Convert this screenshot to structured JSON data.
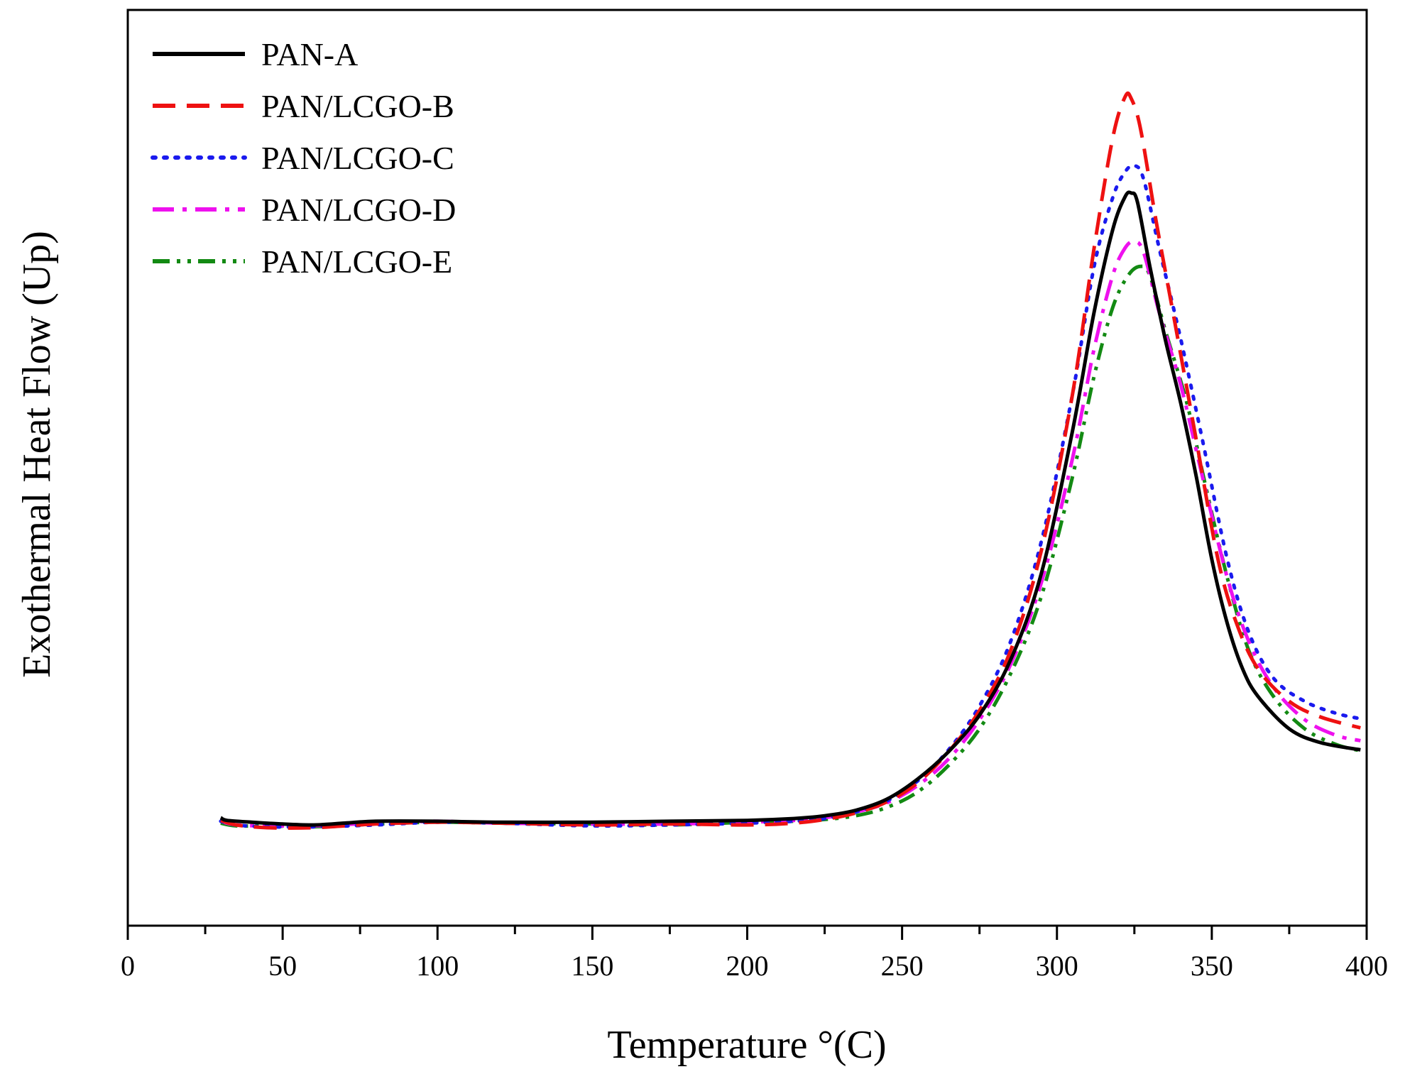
{
  "chart_data": {
    "type": "line",
    "title": "",
    "xlabel": "Temperature °(C)",
    "ylabel": "Exothermal Heat Flow (Up)",
    "xlim": [
      0,
      400
    ],
    "ylim": [
      0,
      100
    ],
    "x_major_ticks": [
      0,
      50,
      100,
      150,
      200,
      250,
      300,
      350,
      400
    ],
    "x_tick_labels": [
      "0",
      "50",
      "100",
      "150",
      "200",
      "250",
      "300",
      "350",
      "400"
    ],
    "y_tick_labels": [],
    "grid": false,
    "legend_position": "top-left",
    "series": [
      {
        "name": "PAN-A",
        "color": "#000000",
        "style": "solid",
        "points": [
          [
            30,
            11.8
          ],
          [
            32,
            11.5
          ],
          [
            40,
            11.3
          ],
          [
            50,
            11.1
          ],
          [
            60,
            11.0
          ],
          [
            70,
            11.2
          ],
          [
            80,
            11.4
          ],
          [
            100,
            11.4
          ],
          [
            120,
            11.3
          ],
          [
            150,
            11.3
          ],
          [
            175,
            11.4
          ],
          [
            200,
            11.5
          ],
          [
            215,
            11.7
          ],
          [
            225,
            12.0
          ],
          [
            235,
            12.6
          ],
          [
            245,
            13.8
          ],
          [
            255,
            16.0
          ],
          [
            265,
            19.0
          ],
          [
            275,
            23.0
          ],
          [
            285,
            29.0
          ],
          [
            295,
            38.5
          ],
          [
            305,
            54.0
          ],
          [
            312,
            67.0
          ],
          [
            318,
            76.0
          ],
          [
            322,
            79.6
          ],
          [
            324,
            80.0
          ],
          [
            326,
            79.0
          ],
          [
            330,
            72.0
          ],
          [
            335,
            64.0
          ],
          [
            340,
            57.0
          ],
          [
            345,
            49.0
          ],
          [
            350,
            40.0
          ],
          [
            355,
            33.0
          ],
          [
            360,
            28.0
          ],
          [
            365,
            25.0
          ],
          [
            375,
            21.5
          ],
          [
            385,
            20.0
          ],
          [
            398,
            19.2
          ]
        ]
      },
      {
        "name": "PAN/LCGO-B",
        "color": "#ee1111",
        "style": "dashed",
        "points": [
          [
            30,
            11.5
          ],
          [
            35,
            11.0
          ],
          [
            45,
            10.7
          ],
          [
            60,
            10.7
          ],
          [
            80,
            11.1
          ],
          [
            100,
            11.3
          ],
          [
            120,
            11.2
          ],
          [
            150,
            11.0
          ],
          [
            175,
            11.1
          ],
          [
            200,
            11.0
          ],
          [
            215,
            11.2
          ],
          [
            225,
            11.6
          ],
          [
            235,
            12.3
          ],
          [
            245,
            13.5
          ],
          [
            255,
            15.6
          ],
          [
            265,
            19.0
          ],
          [
            275,
            23.5
          ],
          [
            285,
            30.0
          ],
          [
            295,
            41.0
          ],
          [
            305,
            58.0
          ],
          [
            312,
            74.0
          ],
          [
            318,
            86.0
          ],
          [
            322,
            90.5
          ],
          [
            324,
            90.3
          ],
          [
            327,
            87.0
          ],
          [
            332,
            77.0
          ],
          [
            338,
            66.0
          ],
          [
            345,
            53.0
          ],
          [
            352,
            40.0
          ],
          [
            358,
            33.0
          ],
          [
            365,
            28.0
          ],
          [
            375,
            24.5
          ],
          [
            385,
            22.8
          ],
          [
            398,
            21.6
          ]
        ]
      },
      {
        "name": "PAN/LCGO-C",
        "color": "#1a1aee",
        "style": "dotted",
        "points": [
          [
            30,
            11.4
          ],
          [
            35,
            11.0
          ],
          [
            45,
            10.8
          ],
          [
            60,
            10.8
          ],
          [
            80,
            11.0
          ],
          [
            100,
            11.3
          ],
          [
            120,
            11.2
          ],
          [
            150,
            10.9
          ],
          [
            175,
            11.0
          ],
          [
            200,
            11.2
          ],
          [
            215,
            11.4
          ],
          [
            225,
            11.7
          ],
          [
            235,
            12.4
          ],
          [
            245,
            13.6
          ],
          [
            255,
            15.8
          ],
          [
            265,
            19.2
          ],
          [
            275,
            24.0
          ],
          [
            285,
            31.0
          ],
          [
            295,
            42.0
          ],
          [
            305,
            58.0
          ],
          [
            312,
            72.0
          ],
          [
            318,
            79.5
          ],
          [
            322,
            82.3
          ],
          [
            325,
            83.0
          ],
          [
            328,
            81.5
          ],
          [
            333,
            74.0
          ],
          [
            340,
            64.0
          ],
          [
            347,
            53.0
          ],
          [
            355,
            40.0
          ],
          [
            362,
            32.0
          ],
          [
            370,
            27.0
          ],
          [
            380,
            24.5
          ],
          [
            390,
            23.2
          ],
          [
            398,
            22.6
          ]
        ]
      },
      {
        "name": "PAN/LCGO-D",
        "color": "#ee11ee",
        "style": "dash-dot",
        "points": [
          [
            30,
            11.4
          ],
          [
            35,
            11.0
          ],
          [
            45,
            10.9
          ],
          [
            60,
            10.9
          ],
          [
            80,
            11.2
          ],
          [
            100,
            11.4
          ],
          [
            120,
            11.2
          ],
          [
            150,
            11.1
          ],
          [
            175,
            11.1
          ],
          [
            200,
            11.3
          ],
          [
            215,
            11.5
          ],
          [
            225,
            11.8
          ],
          [
            235,
            12.4
          ],
          [
            245,
            13.4
          ],
          [
            255,
            15.3
          ],
          [
            265,
            18.2
          ],
          [
            275,
            22.5
          ],
          [
            285,
            28.5
          ],
          [
            295,
            37.5
          ],
          [
            305,
            51.0
          ],
          [
            312,
            63.0
          ],
          [
            318,
            71.0
          ],
          [
            322,
            74.0
          ],
          [
            325,
            74.7
          ],
          [
            328,
            73.5
          ],
          [
            333,
            67.0
          ],
          [
            340,
            59.0
          ],
          [
            347,
            49.0
          ],
          [
            355,
            38.0
          ],
          [
            362,
            31.0
          ],
          [
            370,
            26.0
          ],
          [
            380,
            22.5
          ],
          [
            390,
            20.8
          ],
          [
            398,
            20.2
          ]
        ]
      },
      {
        "name": "PAN/LCGO-E",
        "color": "#138a13",
        "style": "dash-dot-dot",
        "points": [
          [
            30,
            11.2
          ],
          [
            35,
            10.9
          ],
          [
            45,
            10.9
          ],
          [
            60,
            10.8
          ],
          [
            80,
            11.1
          ],
          [
            100,
            11.3
          ],
          [
            120,
            11.2
          ],
          [
            150,
            11.1
          ],
          [
            175,
            11.0
          ],
          [
            200,
            11.3
          ],
          [
            215,
            11.4
          ],
          [
            225,
            11.6
          ],
          [
            235,
            12.0
          ],
          [
            245,
            12.9
          ],
          [
            255,
            14.6
          ],
          [
            265,
            17.5
          ],
          [
            275,
            21.5
          ],
          [
            285,
            27.5
          ],
          [
            295,
            36.0
          ],
          [
            305,
            49.0
          ],
          [
            312,
            60.0
          ],
          [
            318,
            67.5
          ],
          [
            323,
            71.0
          ],
          [
            327,
            72.0
          ],
          [
            330,
            71.0
          ],
          [
            335,
            65.0
          ],
          [
            342,
            57.0
          ],
          [
            348,
            48.0
          ],
          [
            355,
            38.0
          ],
          [
            362,
            30.0
          ],
          [
            370,
            25.0
          ],
          [
            380,
            21.5
          ],
          [
            390,
            19.8
          ],
          [
            398,
            19.1
          ]
        ]
      }
    ]
  }
}
